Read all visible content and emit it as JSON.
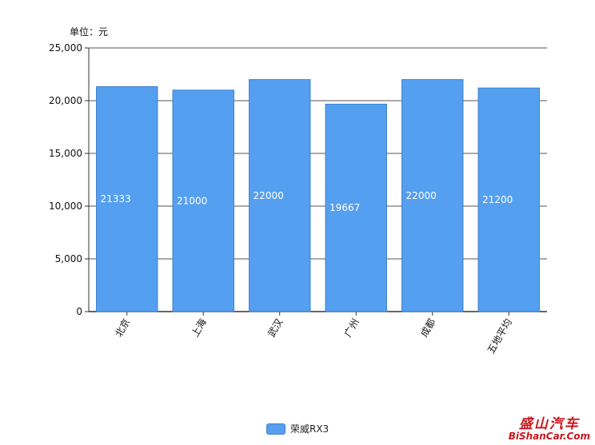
{
  "unit_label": "单位：元",
  "chart_data": {
    "type": "bar",
    "categories": [
      "北京",
      "上海",
      "武汉",
      "广州",
      "成都",
      "五地平均"
    ],
    "series": [
      {
        "name": "荣威RX3",
        "values": [
          21333,
          21000,
          22000,
          19667,
          22000,
          21200
        ]
      }
    ],
    "data_labels": [
      "21333",
      "21000",
      "22000",
      "19667",
      "22000",
      "21200"
    ],
    "ylim": [
      0,
      25000
    ],
    "yticks": [
      0,
      5000,
      10000,
      15000,
      20000,
      25000
    ],
    "ytick_labels": [
      "0",
      "5,000",
      "10,000",
      "15,000",
      "20,000",
      "25,000"
    ],
    "grid": true,
    "legend_position": "bottom-center",
    "bar_color": "#559ff0",
    "bar_border_color": "#3f7fc8",
    "label_color": "#ffffff"
  },
  "legend": {
    "label": "荣威RX3"
  },
  "watermark": {
    "line1": "盛山汽车",
    "line2": "BiShanCar.Com"
  }
}
